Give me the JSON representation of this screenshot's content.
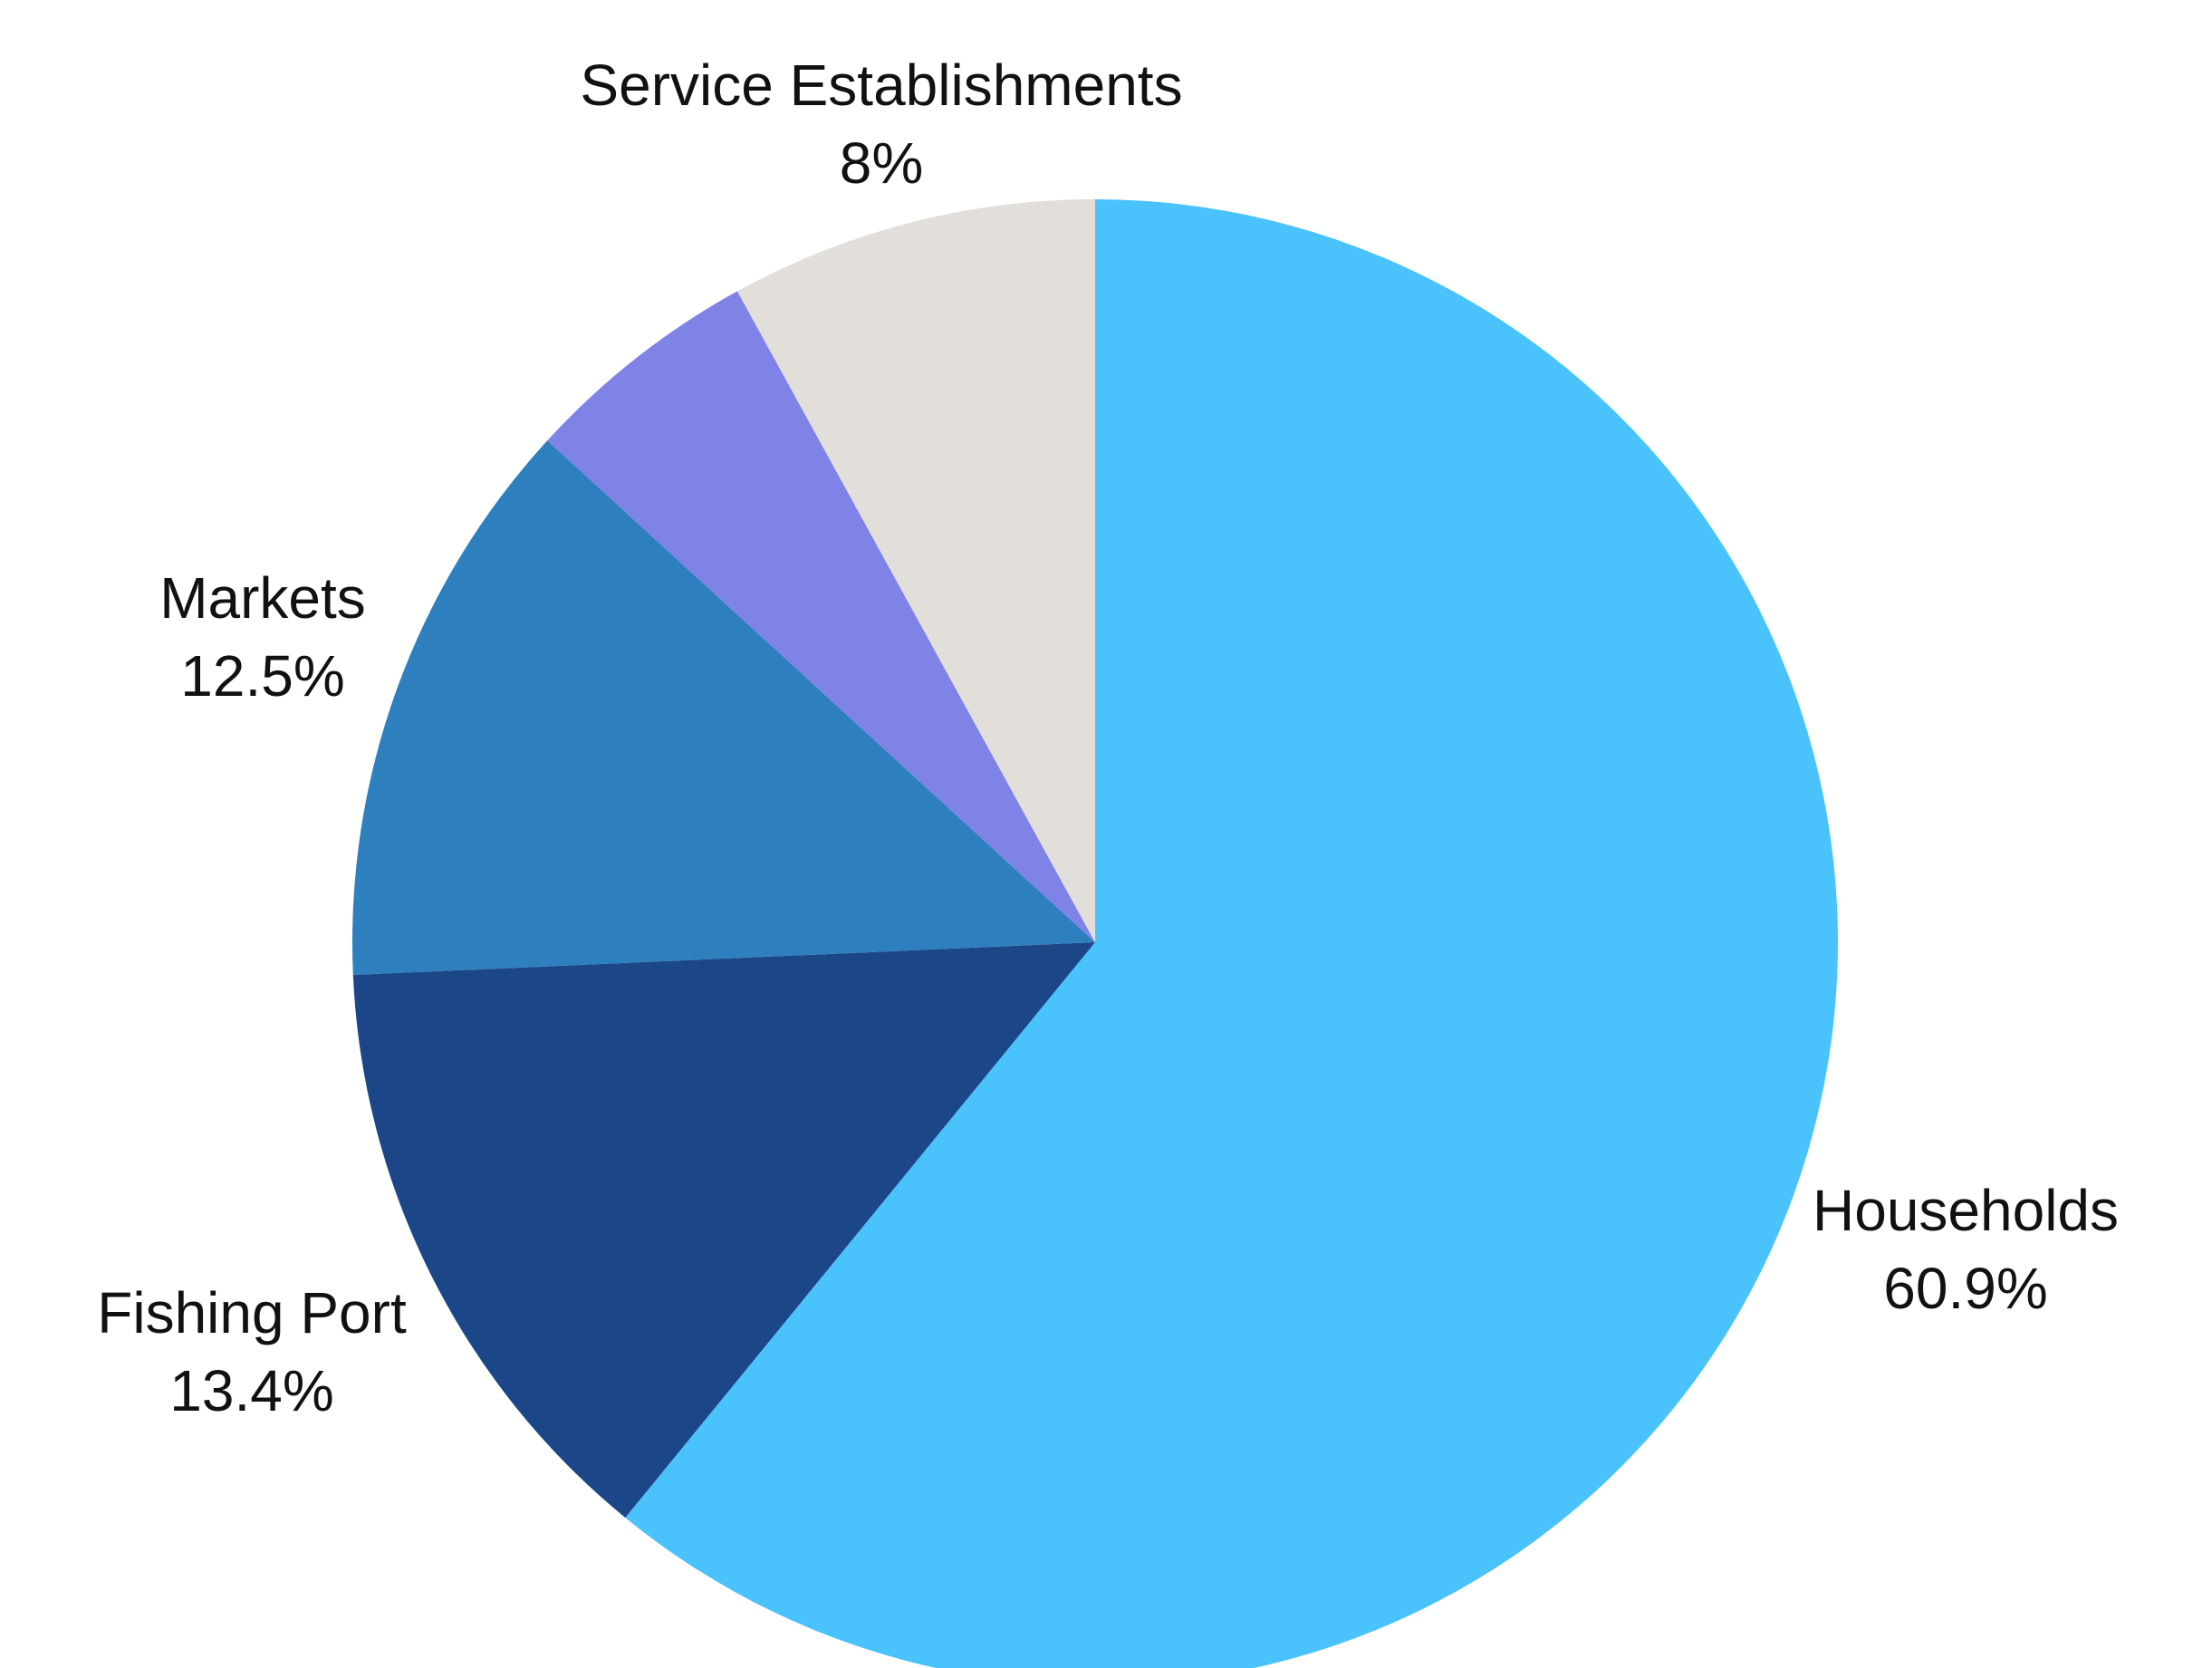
{
  "chart_data": {
    "type": "pie",
    "title": "",
    "slices": [
      {
        "label": "Households",
        "value": 60.9,
        "value_label": "60.9%",
        "color": "#4ac2fc"
      },
      {
        "label": "Fishing Port",
        "value": 13.4,
        "value_label": "13.4%",
        "color": "#1b4788"
      },
      {
        "label": "Markets",
        "value": 12.5,
        "value_label": "12.5%",
        "color": "#2e7fbe"
      },
      {
        "label": "",
        "value": 5.2,
        "value_label": "",
        "color": "#8083e6"
      },
      {
        "label": "Service Establishments",
        "value": 8,
        "value_label": "8%",
        "color": "#e2ded9"
      }
    ],
    "start_angle": "12 o'clock",
    "direction": "clockwise",
    "legend": "none"
  }
}
